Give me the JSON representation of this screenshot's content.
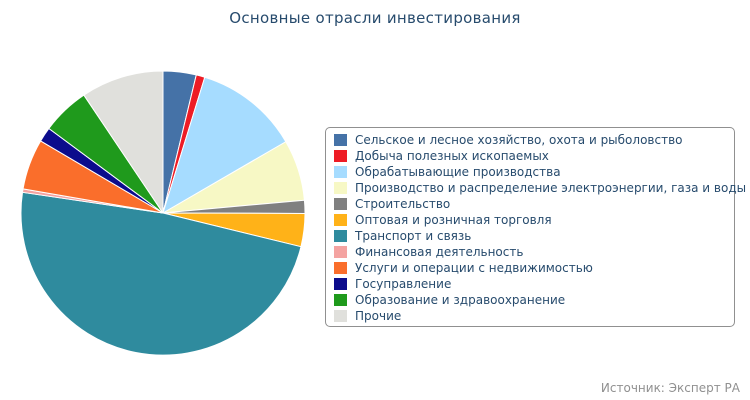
{
  "chart_data": {
    "type": "pie",
    "title": "Основные отрасли инвестирования",
    "legend_position": "right",
    "slices": [
      {
        "label": "Сельское и лесное хозяйство, охота и рыболовство",
        "value": 3.8,
        "color": "#4572a7"
      },
      {
        "label": "Добыча полезных ископаемых",
        "value": 1.0,
        "color": "#ee1c25"
      },
      {
        "label": "Обрабатывающие производства",
        "value": 12.0,
        "color": "#a6dcff"
      },
      {
        "label": "Производство и распределение электроэнергии, газа и воды",
        "value": 7.0,
        "color": "#f7f8c5"
      },
      {
        "label": "Строительство",
        "value": 1.5,
        "color": "#808080"
      },
      {
        "label": "Оптовая и розничная торговля",
        "value": 3.8,
        "color": "#ffb218"
      },
      {
        "label": "Транспорт и связь",
        "value": 49.0,
        "color": "#2f8b9e"
      },
      {
        "label": "Финансовая деятельность",
        "value": 0.4,
        "color": "#f4a3a1"
      },
      {
        "label": "Услуги и операции с недвижимостью",
        "value": 5.8,
        "color": "#fa6e2b"
      },
      {
        "label": "Госуправление",
        "value": 1.7,
        "color": "#0c0c8c"
      },
      {
        "label": "Образование и здравоохранение",
        "value": 5.5,
        "color": "#1f9a1c"
      },
      {
        "label": "Прочие",
        "value": 9.5,
        "color": "#e0e0dc"
      }
    ]
  },
  "credits": "Источник: Эксперт РА"
}
